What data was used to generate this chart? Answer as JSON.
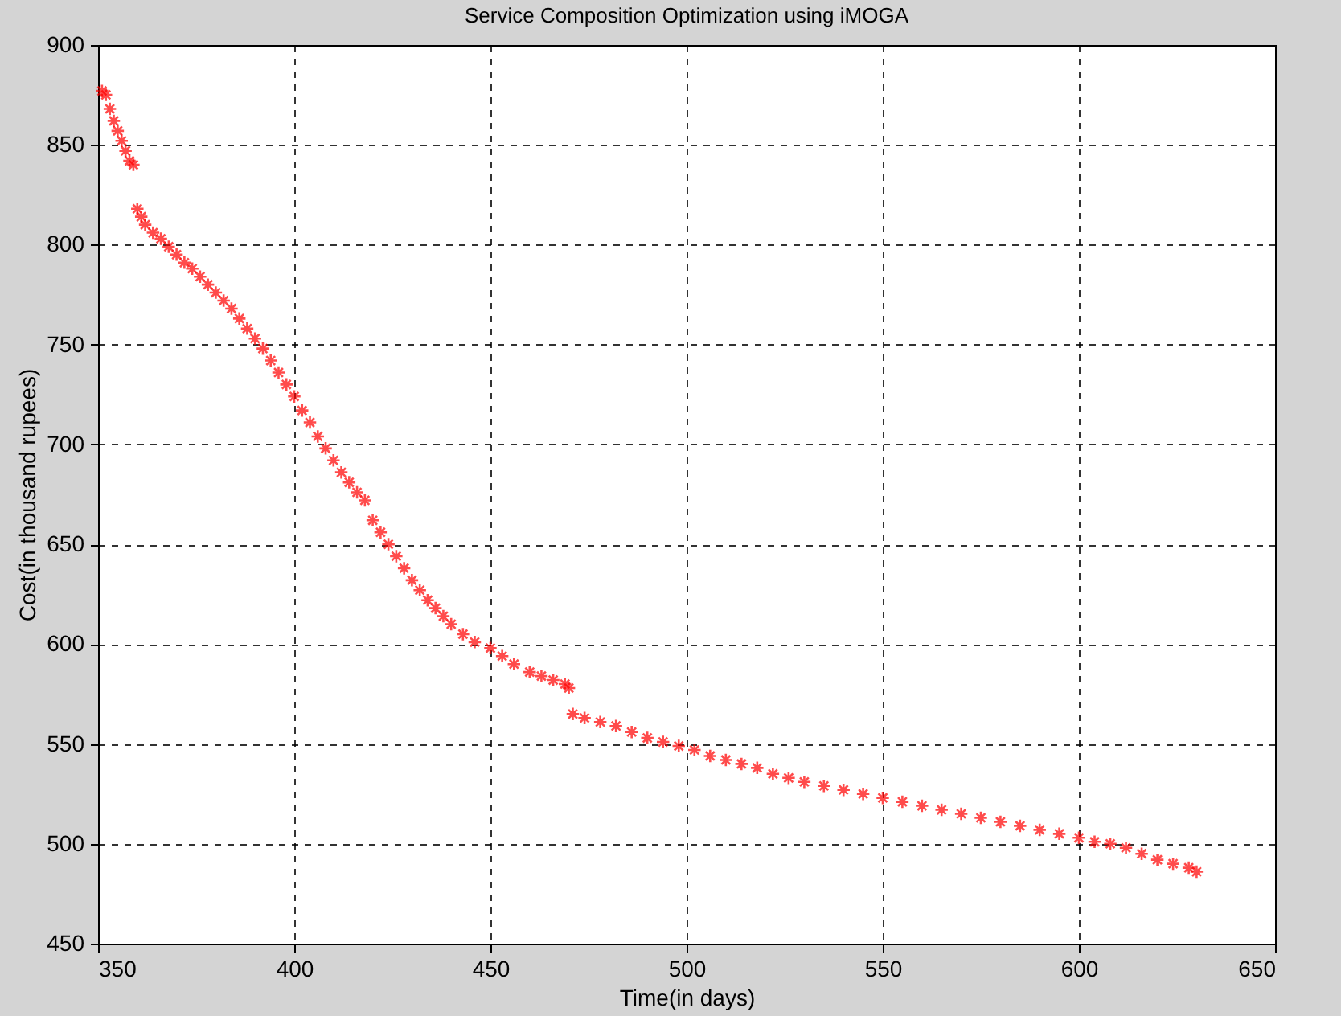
{
  "chart_data": {
    "type": "scatter",
    "title": "Service Composition Optimization using iMOGA",
    "xlabel": "Time(in days)",
    "ylabel": "Cost(in thousand rupees)",
    "x": [
      351,
      352,
      353,
      354,
      355,
      356,
      357,
      358,
      359,
      360,
      361,
      362,
      364,
      366,
      368,
      370,
      372,
      374,
      376,
      378,
      380,
      382,
      384,
      386,
      388,
      390,
      392,
      394,
      396,
      398,
      400,
      402,
      404,
      406,
      408,
      410,
      412,
      414,
      416,
      418,
      420,
      422,
      424,
      426,
      428,
      430,
      432,
      434,
      436,
      438,
      440,
      443,
      446,
      450,
      453,
      456,
      460,
      463,
      466,
      469,
      470,
      471,
      474,
      478,
      482,
      486,
      490,
      494,
      498,
      502,
      506,
      510,
      514,
      518,
      522,
      526,
      530,
      535,
      540,
      545,
      550,
      555,
      560,
      565,
      570,
      575,
      580,
      585,
      590,
      595,
      600,
      604,
      608,
      612,
      616,
      620,
      624,
      628,
      630
    ],
    "series": [
      {
        "color": "#ff0000",
        "values": [
          877,
          875,
          868,
          862,
          857,
          852,
          847,
          842,
          840,
          818,
          814,
          810,
          806,
          803,
          799,
          795,
          791,
          788,
          784,
          780,
          776,
          772,
          768,
          763,
          758,
          753,
          748,
          742,
          736,
          730,
          724,
          717,
          711,
          704,
          698,
          692,
          686,
          681,
          676,
          672,
          662,
          656,
          650,
          644,
          638,
          632,
          627,
          622,
          618,
          614,
          610,
          605,
          601,
          598,
          594,
          590,
          586,
          584,
          582,
          580,
          578,
          565,
          563,
          561,
          559,
          556,
          553,
          551,
          549,
          547,
          544,
          542,
          540,
          538,
          535,
          533,
          531,
          529,
          527,
          525,
          523,
          521,
          519,
          517,
          515,
          513,
          511,
          509,
          507,
          505,
          503,
          501,
          500,
          498,
          495,
          492,
          490,
          488,
          486
        ]
      }
    ],
    "xlim": [
      350,
      650
    ],
    "ylim": [
      450,
      900
    ],
    "xticks": [
      350,
      400,
      450,
      500,
      550,
      600,
      650
    ],
    "yticks": [
      450,
      500,
      550,
      600,
      650,
      700,
      750,
      800,
      850,
      900
    ],
    "grid": true,
    "marker": "cross"
  }
}
